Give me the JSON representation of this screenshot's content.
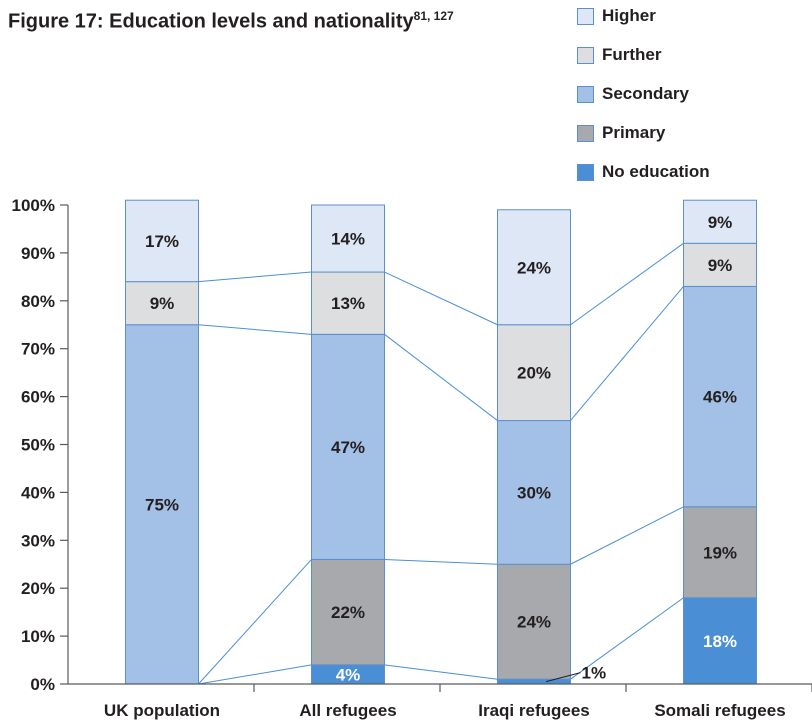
{
  "title": {
    "text": "Figure 17: Education levels and nationality",
    "refs": "81, 127"
  },
  "colors": {
    "axis": "#5a5a5a",
    "connector": "#4a8fd6",
    "bar_border": "#5b8fcf"
  },
  "chart_data": {
    "type": "bar",
    "stacked": true,
    "categories": [
      "UK population",
      "All refugees",
      "Iraqi refugees",
      "Somali refugees"
    ],
    "series": [
      {
        "name": "No education",
        "color": "#4a8fd6",
        "label_color": "#ffffff",
        "values": [
          0,
          4,
          1,
          18
        ],
        "labels": [
          "",
          "4%",
          "1%",
          "18%"
        ]
      },
      {
        "name": "Primary",
        "color": "#a7a9ac",
        "label_color": "#231f20",
        "values": [
          0,
          22,
          24,
          19
        ],
        "labels": [
          "",
          "22%",
          "24%",
          "19%"
        ]
      },
      {
        "name": "Secondary",
        "color": "#a3c0e6",
        "label_color": "#231f20",
        "values": [
          75,
          47,
          30,
          46
        ],
        "labels": [
          "75%",
          "47%",
          "30%",
          "46%"
        ]
      },
      {
        "name": "Further",
        "color": "#dcdedf",
        "label_color": "#231f20",
        "values": [
          9,
          13,
          20,
          9
        ],
        "labels": [
          "9%",
          "13%",
          "20%",
          "9%"
        ]
      },
      {
        "name": "Higher",
        "color": "#dde7f5",
        "label_color": "#231f20",
        "values": [
          17,
          14,
          24,
          9
        ],
        "labels": [
          "17%",
          "14%",
          "24%",
          "9%"
        ]
      }
    ],
    "legend_order": [
      "Higher",
      "Further",
      "Secondary",
      "Primary",
      "No education"
    ],
    "legend_position": "top-right",
    "ylim": [
      0,
      100
    ],
    "yticks": [
      "0%",
      "10%",
      "20%",
      "30%",
      "40%",
      "50%",
      "60%",
      "70%",
      "80%",
      "90%",
      "100%"
    ],
    "xlabel": "",
    "ylabel": "",
    "grid": false,
    "connector_lines": true
  }
}
